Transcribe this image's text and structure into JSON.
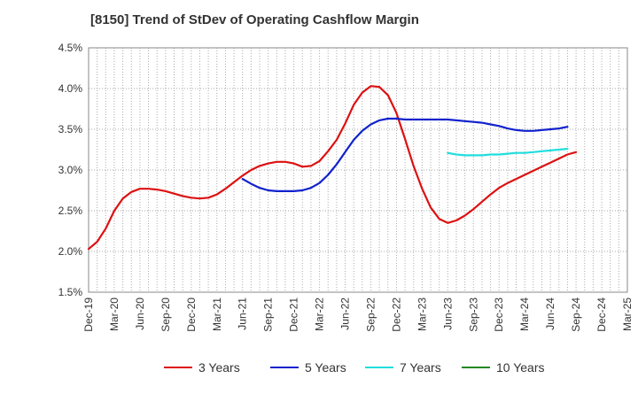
{
  "chart_data": {
    "type": "line",
    "title": "[8150]  Trend of StDev of Operating Cashflow Margin",
    "xlabel": "",
    "ylabel": "",
    "y_tick_labels": [
      "1.5%",
      "2.0%",
      "2.5%",
      "3.0%",
      "3.5%",
      "4.0%",
      "4.5%"
    ],
    "y_tick_values": [
      1.5,
      2.0,
      2.5,
      3.0,
      3.5,
      4.0,
      4.5
    ],
    "ylim": [
      1.5,
      4.5
    ],
    "x_tick_labels": [
      "Dec-19",
      "Mar-20",
      "Jun-20",
      "Sep-20",
      "Dec-20",
      "Mar-21",
      "Jun-21",
      "Sep-21",
      "Dec-21",
      "Mar-22",
      "Jun-22",
      "Sep-22",
      "Dec-22",
      "Mar-23",
      "Jun-23",
      "Sep-23",
      "Dec-23",
      "Mar-24",
      "Jun-24",
      "Sep-24",
      "Dec-24",
      "Mar-25"
    ],
    "x_start": "2019-12",
    "x_end": "2025-03",
    "grid": true,
    "legend_position": "bottom",
    "series": [
      {
        "name": "3 Years",
        "color": "#dd1111",
        "points": [
          [
            "2019-12",
            2.03
          ],
          [
            "2020-01",
            2.12
          ],
          [
            "2020-02",
            2.28
          ],
          [
            "2020-03",
            2.5
          ],
          [
            "2020-04",
            2.65
          ],
          [
            "2020-05",
            2.73
          ],
          [
            "2020-06",
            2.77
          ],
          [
            "2020-07",
            2.77
          ],
          [
            "2020-08",
            2.76
          ],
          [
            "2020-09",
            2.74
          ],
          [
            "2020-10",
            2.71
          ],
          [
            "2020-11",
            2.68
          ],
          [
            "2020-12",
            2.66
          ],
          [
            "2021-01",
            2.65
          ],
          [
            "2021-02",
            2.66
          ],
          [
            "2021-03",
            2.7
          ],
          [
            "2021-04",
            2.77
          ],
          [
            "2021-05",
            2.85
          ],
          [
            "2021-06",
            2.93
          ],
          [
            "2021-07",
            3.0
          ],
          [
            "2021-08",
            3.05
          ],
          [
            "2021-09",
            3.08
          ],
          [
            "2021-10",
            3.1
          ],
          [
            "2021-11",
            3.1
          ],
          [
            "2021-12",
            3.08
          ],
          [
            "2022-01",
            3.04
          ],
          [
            "2022-02",
            3.05
          ],
          [
            "2022-03",
            3.11
          ],
          [
            "2022-04",
            3.23
          ],
          [
            "2022-05",
            3.37
          ],
          [
            "2022-06",
            3.57
          ],
          [
            "2022-07",
            3.8
          ],
          [
            "2022-08",
            3.95
          ],
          [
            "2022-09",
            4.03
          ],
          [
            "2022-10",
            4.02
          ],
          [
            "2022-11",
            3.92
          ],
          [
            "2022-12",
            3.7
          ],
          [
            "2023-01",
            3.38
          ],
          [
            "2023-02",
            3.05
          ],
          [
            "2023-03",
            2.77
          ],
          [
            "2023-04",
            2.54
          ],
          [
            "2023-05",
            2.4
          ],
          [
            "2023-06",
            2.35
          ],
          [
            "2023-07",
            2.38
          ],
          [
            "2023-08",
            2.44
          ],
          [
            "2023-09",
            2.52
          ],
          [
            "2023-10",
            2.61
          ],
          [
            "2023-11",
            2.7
          ],
          [
            "2023-12",
            2.78
          ],
          [
            "2024-01",
            2.84
          ],
          [
            "2024-02",
            2.89
          ],
          [
            "2024-03",
            2.94
          ],
          [
            "2024-04",
            2.99
          ],
          [
            "2024-05",
            3.04
          ],
          [
            "2024-06",
            3.09
          ],
          [
            "2024-07",
            3.14
          ],
          [
            "2024-08",
            3.19
          ],
          [
            "2024-09",
            3.22
          ]
        ]
      },
      {
        "name": "5 Years",
        "color": "#1122cc",
        "points": [
          [
            "2021-06",
            2.89
          ],
          [
            "2021-07",
            2.83
          ],
          [
            "2021-08",
            2.78
          ],
          [
            "2021-09",
            2.75
          ],
          [
            "2021-10",
            2.74
          ],
          [
            "2021-11",
            2.74
          ],
          [
            "2021-12",
            2.74
          ],
          [
            "2022-01",
            2.75
          ],
          [
            "2022-02",
            2.78
          ],
          [
            "2022-03",
            2.84
          ],
          [
            "2022-04",
            2.94
          ],
          [
            "2022-05",
            3.07
          ],
          [
            "2022-06",
            3.22
          ],
          [
            "2022-07",
            3.37
          ],
          [
            "2022-08",
            3.48
          ],
          [
            "2022-09",
            3.56
          ],
          [
            "2022-10",
            3.61
          ],
          [
            "2022-11",
            3.63
          ],
          [
            "2022-12",
            3.63
          ],
          [
            "2023-01",
            3.62
          ],
          [
            "2023-02",
            3.62
          ],
          [
            "2023-03",
            3.62
          ],
          [
            "2023-04",
            3.62
          ],
          [
            "2023-05",
            3.62
          ],
          [
            "2023-06",
            3.62
          ],
          [
            "2023-07",
            3.61
          ],
          [
            "2023-08",
            3.6
          ],
          [
            "2023-09",
            3.59
          ],
          [
            "2023-10",
            3.58
          ],
          [
            "2023-11",
            3.56
          ],
          [
            "2023-12",
            3.54
          ],
          [
            "2024-01",
            3.51
          ],
          [
            "2024-02",
            3.49
          ],
          [
            "2024-03",
            3.48
          ],
          [
            "2024-04",
            3.48
          ],
          [
            "2024-05",
            3.49
          ],
          [
            "2024-06",
            3.5
          ],
          [
            "2024-07",
            3.51
          ],
          [
            "2024-08",
            3.53
          ]
        ]
      },
      {
        "name": "7 Years",
        "color": "#22dddd",
        "points": [
          [
            "2023-06",
            3.21
          ],
          [
            "2023-07",
            3.19
          ],
          [
            "2023-08",
            3.18
          ],
          [
            "2023-09",
            3.18
          ],
          [
            "2023-10",
            3.18
          ],
          [
            "2023-11",
            3.19
          ],
          [
            "2023-12",
            3.19
          ],
          [
            "2024-01",
            3.2
          ],
          [
            "2024-02",
            3.21
          ],
          [
            "2024-03",
            3.21
          ],
          [
            "2024-04",
            3.22
          ],
          [
            "2024-05",
            3.23
          ],
          [
            "2024-06",
            3.24
          ],
          [
            "2024-07",
            3.25
          ],
          [
            "2024-08",
            3.26
          ]
        ]
      },
      {
        "name": "10 Years",
        "color": "#228822",
        "points": []
      }
    ]
  }
}
